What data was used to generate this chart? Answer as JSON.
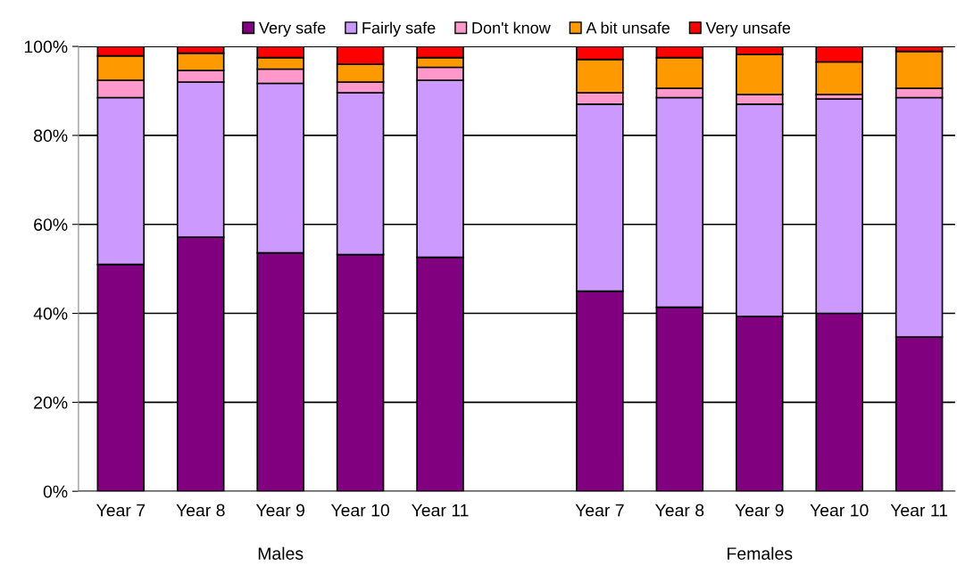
{
  "chart_data": {
    "type": "bar",
    "stacked": true,
    "categories": [
      "Year 7",
      "Year 8",
      "Year 9",
      "Year 10",
      "Year 11",
      null,
      "Year 7",
      "Year 8",
      "Year 9",
      "Year 10",
      "Year 11"
    ],
    "series": [
      {
        "name": "Very safe",
        "color": "#800080",
        "values": [
          51.0,
          57.1,
          53.6,
          53.2,
          52.6,
          null,
          45.0,
          41.4,
          39.3,
          40.0,
          34.7
        ]
      },
      {
        "name": "Fairly safe",
        "color": "#cc99ff",
        "values": [
          37.5,
          34.9,
          38.1,
          36.4,
          39.8,
          null,
          42.0,
          47.1,
          47.7,
          48.2,
          53.8
        ]
      },
      {
        "name": "Don't know",
        "color": "#ff99cc",
        "values": [
          3.9,
          2.6,
          3.2,
          2.4,
          2.9,
          null,
          2.6,
          2.1,
          2.2,
          1.0,
          2.1
        ]
      },
      {
        "name": "A bit unsafe",
        "color": "#ff9900",
        "values": [
          5.5,
          3.9,
          2.6,
          4.0,
          2.2,
          null,
          7.5,
          6.9,
          9.0,
          7.3,
          8.3
        ]
      },
      {
        "name": "Very unsafe",
        "color": "#ff0000",
        "values": [
          2.1,
          1.5,
          2.5,
          4.0,
          2.5,
          null,
          2.9,
          2.5,
          1.8,
          3.5,
          1.1
        ]
      }
    ],
    "ylim": [
      0,
      100
    ],
    "yticks": [
      {
        "value": 0,
        "label": "0%"
      },
      {
        "value": 20,
        "label": "20%"
      },
      {
        "value": 40,
        "label": "40%"
      },
      {
        "value": 60,
        "label": "60%"
      },
      {
        "value": 80,
        "label": "80%"
      },
      {
        "value": 100,
        "label": "100%"
      }
    ],
    "grid": "y",
    "legend": "top",
    "annotations": [
      "Males",
      "Females"
    ]
  }
}
